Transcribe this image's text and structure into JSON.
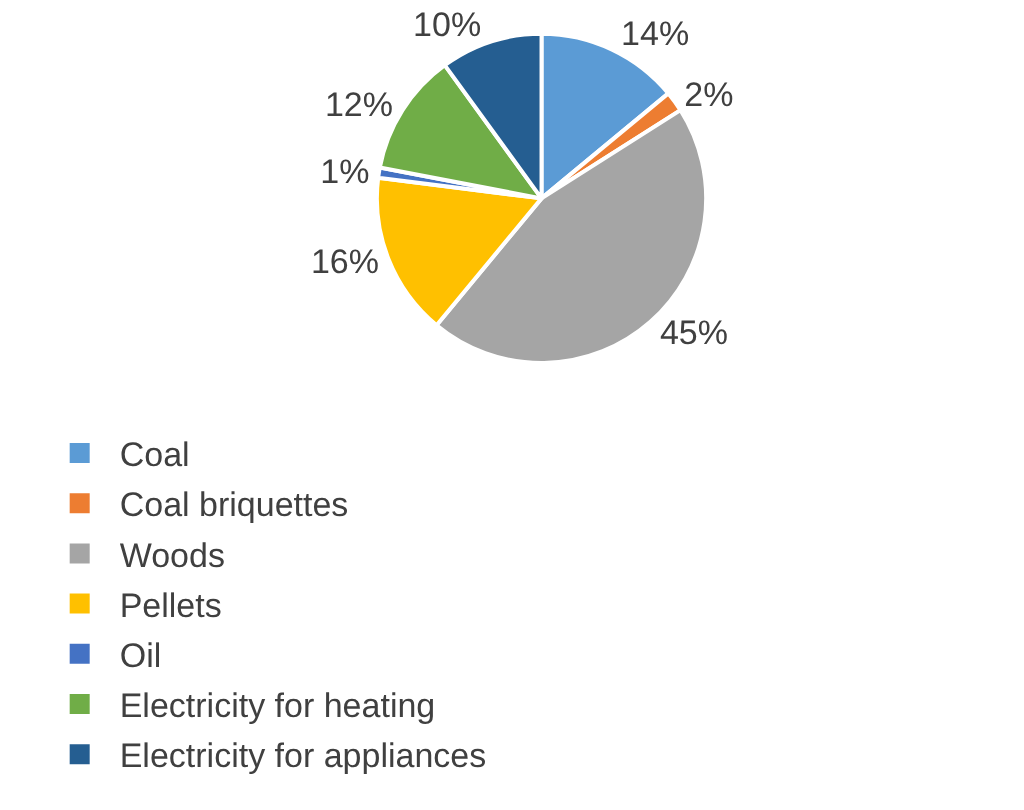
{
  "chart_data": {
    "type": "pie",
    "categories": [
      "Coal",
      "Coal briquettes",
      "Woods",
      "Pellets",
      "Oil",
      "Electricity for heating",
      "Electricity for appliances"
    ],
    "values": [
      14,
      2,
      45,
      16,
      1,
      12,
      10
    ],
    "value_labels": [
      "14%",
      "2%",
      "45%",
      "16%",
      "1%",
      "12%",
      "10%"
    ],
    "colors": [
      "#5b9bd5",
      "#ed7d31",
      "#a5a5a5",
      "#ffc000",
      "#4472c4",
      "#70ad47",
      "#255e91"
    ],
    "legend": "bottom"
  }
}
